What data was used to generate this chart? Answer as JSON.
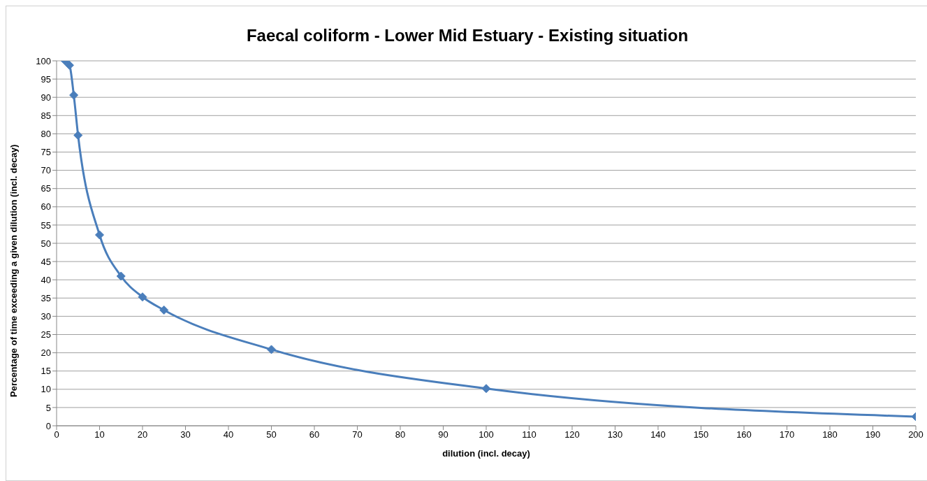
{
  "chart_data": {
    "type": "line",
    "title": "Faecal coliform - Lower Mid Estuary - Existing situation",
    "xlabel": "dilution (incl. decay)",
    "ylabel": "Percentage of time exceeding a given dilution (incl. decay)",
    "x": [
      2,
      3,
      4,
      5,
      10,
      15,
      20,
      25,
      50,
      100,
      200
    ],
    "series": [
      {
        "color": "#4a7ebb",
        "values": [
          100,
          98.8,
          90.6,
          79.6,
          52.3,
          41,
          35.3,
          31.7,
          20.9,
          10.2,
          2.5
        ]
      }
    ],
    "xlim": [
      0,
      200
    ],
    "xticks": [
      0,
      10,
      20,
      30,
      40,
      50,
      60,
      70,
      80,
      90,
      100,
      110,
      120,
      130,
      140,
      150,
      160,
      170,
      180,
      190,
      200
    ],
    "ylim": [
      0,
      100
    ],
    "yticks": [
      0,
      5,
      10,
      15,
      20,
      25,
      30,
      35,
      40,
      45,
      50,
      55,
      60,
      65,
      70,
      75,
      80,
      85,
      90,
      95,
      100
    ],
    "grid": "y",
    "marker": "diamond",
    "line_style": "solid",
    "legend": false
  }
}
